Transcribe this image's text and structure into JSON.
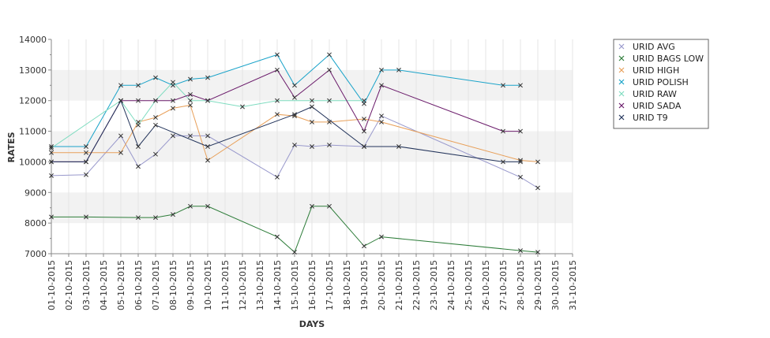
{
  "chart_data": {
    "type": "line",
    "title": "",
    "xlabel": "DAYS",
    "ylabel": "RATES",
    "ylim": [
      7000,
      14000
    ],
    "yticks": [
      7000,
      8000,
      9000,
      10000,
      11000,
      12000,
      13000,
      14000
    ],
    "grid": true,
    "legend_position": "top-right",
    "x": [
      "01-10-2015",
      "02-10-2015",
      "03-10-2015",
      "04-10-2015",
      "05-10-2015",
      "06-10-2015",
      "07-10-2015",
      "08-10-2015",
      "09-10-2015",
      "10-10-2015",
      "11-10-2015",
      "12-10-2015",
      "13-10-2015",
      "14-10-2015",
      "15-10-2015",
      "16-10-2015",
      "17-10-2015",
      "18-10-2015",
      "19-10-2015",
      "20-10-2015",
      "21-10-2015",
      "22-10-2015",
      "23-10-2015",
      "24-10-2015",
      "25-10-2015",
      "26-10-2015",
      "27-10-2015",
      "28-10-2015",
      "29-10-2015",
      "30-10-2015",
      "31-10-2015"
    ],
    "series": [
      {
        "name": "URID AVG",
        "color": "#9999cc",
        "points": [
          [
            1,
            9550
          ],
          [
            3,
            9580
          ],
          [
            5,
            10850
          ],
          [
            6,
            9850
          ],
          [
            7,
            10250
          ],
          [
            8,
            10850
          ],
          [
            9,
            10850
          ],
          [
            10,
            10850
          ],
          [
            14,
            9500
          ],
          [
            15,
            10550
          ],
          [
            16,
            10500
          ],
          [
            17,
            10550
          ],
          [
            19,
            10500
          ],
          [
            20,
            11500
          ],
          [
            28,
            9500
          ],
          [
            29,
            9150
          ]
        ]
      },
      {
        "name": "URID BAGS LOW",
        "color": "#2e7d3a",
        "points": [
          [
            1,
            8200
          ],
          [
            3,
            8200
          ],
          [
            6,
            8180
          ],
          [
            7,
            8180
          ],
          [
            8,
            8280
          ],
          [
            9,
            8550
          ],
          [
            10,
            8550
          ],
          [
            14,
            7550
          ],
          [
            15,
            7050
          ],
          [
            16,
            8550
          ],
          [
            17,
            8550
          ],
          [
            19,
            7250
          ],
          [
            20,
            7550
          ],
          [
            28,
            7100
          ],
          [
            29,
            7050
          ]
        ]
      },
      {
        "name": "URID HIGH",
        "color": "#e8a05a",
        "points": [
          [
            1,
            10300
          ],
          [
            3,
            10300
          ],
          [
            5,
            10300
          ],
          [
            6,
            11300
          ],
          [
            7,
            11450
          ],
          [
            8,
            11750
          ],
          [
            9,
            11850
          ],
          [
            10,
            10050
          ],
          [
            14,
            11550
          ],
          [
            15,
            11500
          ],
          [
            16,
            11300
          ],
          [
            17,
            11300
          ],
          [
            19,
            11400
          ],
          [
            20,
            11300
          ],
          [
            28,
            10050
          ],
          [
            29,
            10000
          ]
        ]
      },
      {
        "name": "URID POLISH",
        "color": "#1aa3c9",
        "points": [
          [
            1,
            10500
          ],
          [
            3,
            10500
          ],
          [
            5,
            12500
          ],
          [
            6,
            12500
          ],
          [
            7,
            12750
          ],
          [
            8,
            12500
          ],
          [
            9,
            12700
          ],
          [
            10,
            12750
          ],
          [
            14,
            13500
          ],
          [
            15,
            12500
          ],
          [
            17,
            13500
          ],
          [
            19,
            11900
          ],
          [
            20,
            13000
          ],
          [
            21,
            13000
          ],
          [
            27,
            12500
          ],
          [
            28,
            12500
          ]
        ]
      },
      {
        "name": "URID RAW",
        "color": "#7fdcc0",
        "points": [
          [
            1,
            10450
          ],
          [
            5,
            12000
          ],
          [
            6,
            11200
          ],
          [
            7,
            12000
          ],
          [
            8,
            12600
          ],
          [
            9,
            12000
          ],
          [
            10,
            12000
          ],
          [
            12,
            11800
          ],
          [
            14,
            12000
          ],
          [
            16,
            12000
          ],
          [
            17,
            12000
          ],
          [
            19,
            12000
          ]
        ]
      },
      {
        "name": "URID SADA",
        "color": "#6a1a6a",
        "points": [
          [
            1,
            10000
          ],
          [
            3,
            10000
          ],
          [
            5,
            12000
          ],
          [
            6,
            12000
          ],
          [
            7,
            12000
          ],
          [
            8,
            12000
          ],
          [
            9,
            12200
          ],
          [
            10,
            12000
          ],
          [
            14,
            13000
          ],
          [
            15,
            12100
          ],
          [
            17,
            13000
          ],
          [
            19,
            11000
          ],
          [
            20,
            12500
          ],
          [
            27,
            11000
          ],
          [
            28,
            11000
          ]
        ]
      },
      {
        "name": "URID T9",
        "color": "#22335a",
        "points": [
          [
            1,
            10000
          ],
          [
            3,
            10000
          ],
          [
            5,
            12000
          ],
          [
            6,
            10500
          ],
          [
            7,
            11200
          ],
          [
            10,
            10500
          ],
          [
            15,
            11550
          ],
          [
            16,
            11800
          ],
          [
            19,
            10500
          ],
          [
            21,
            10500
          ],
          [
            27,
            10000
          ],
          [
            28,
            10000
          ]
        ]
      }
    ]
  }
}
